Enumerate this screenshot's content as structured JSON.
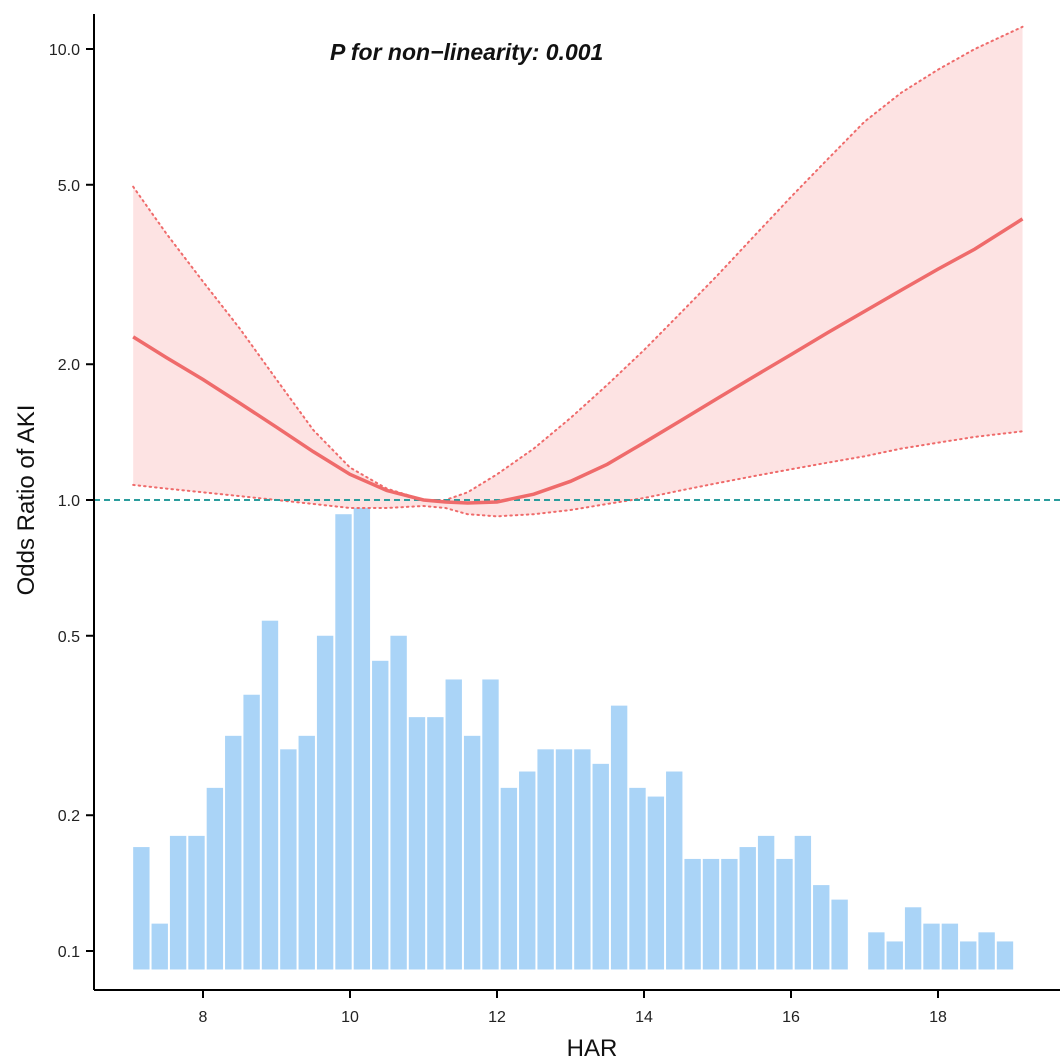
{
  "chart_data": {
    "type": "line",
    "annotation": "P for non−linearity: 0.001",
    "xlabel": "HAR",
    "ylabel": "Odds Ratio of AKI",
    "xlim": [
      6.7,
      19.9
    ],
    "ylim": [
      0.085,
      11.5
    ],
    "y_scale": "log",
    "x_ticks": [
      8,
      10,
      12,
      14,
      16,
      18
    ],
    "x_tick_labels": [
      "8",
      "10",
      "12",
      "14",
      "16",
      "18"
    ],
    "y_ticks": [
      0.1,
      0.2,
      0.5,
      1.0,
      2.0,
      5.0,
      10.0
    ],
    "y_tick_labels": [
      "0.1",
      "0.2",
      "0.5",
      "1.0",
      "2.0",
      "5.0",
      "10.0"
    ],
    "reference_line": 1.0,
    "colors": {
      "curve": "#ef6b6b",
      "band": "#fde3e3",
      "reference": "#2a9d9d",
      "histogram": "#aad4f7"
    },
    "series": [
      {
        "x": [
          7.05,
          7.5,
          8,
          8.5,
          9,
          9.5,
          10,
          10.5,
          11,
          11.3,
          11.6,
          12,
          12.5,
          13,
          13.5,
          14,
          14.5,
          15,
          15.5,
          16,
          16.5,
          17,
          17.5,
          18,
          18.5,
          19.15
        ],
        "y": [
          2.3,
          2.07,
          1.85,
          1.64,
          1.45,
          1.28,
          1.14,
          1.05,
          1.0,
          0.99,
          0.985,
          0.99,
          1.03,
          1.1,
          1.2,
          1.34,
          1.5,
          1.68,
          1.88,
          2.1,
          2.35,
          2.62,
          2.92,
          3.25,
          3.6,
          4.2
        ],
        "lower": [
          1.08,
          1.06,
          1.04,
          1.02,
          1.0,
          0.98,
          0.96,
          0.96,
          0.97,
          0.96,
          0.93,
          0.92,
          0.93,
          0.95,
          0.98,
          1.01,
          1.05,
          1.09,
          1.13,
          1.17,
          1.21,
          1.25,
          1.3,
          1.34,
          1.38,
          1.42
        ],
        "upper": [
          4.95,
          3.9,
          3.05,
          2.4,
          1.85,
          1.43,
          1.18,
          1.06,
          1.0,
          1.0,
          1.04,
          1.14,
          1.3,
          1.52,
          1.8,
          2.15,
          2.6,
          3.15,
          3.85,
          4.7,
          5.7,
          6.9,
          8.0,
          9.0,
          10.0,
          11.2
        ]
      }
    ],
    "histogram": {
      "bin_width": 0.25,
      "x_start": 7.05,
      "values": [
        0.17,
        0.115,
        0.18,
        0.18,
        0.23,
        0.3,
        0.37,
        0.54,
        0.28,
        0.3,
        0.5,
        0.93,
        1.0,
        0.44,
        0.5,
        0.33,
        0.33,
        0.4,
        0.3,
        0.4,
        0.23,
        0.25,
        0.28,
        0.28,
        0.28,
        0.26,
        0.35,
        0.23,
        0.22,
        0.25,
        0.16,
        0.16,
        0.16,
        0.17,
        0.18,
        0.16,
        0.18,
        0.14,
        0.13,
        null,
        0.11,
        0.105,
        0.125,
        0.115,
        0.115,
        0.105,
        0.11,
        0.105
      ]
    }
  }
}
